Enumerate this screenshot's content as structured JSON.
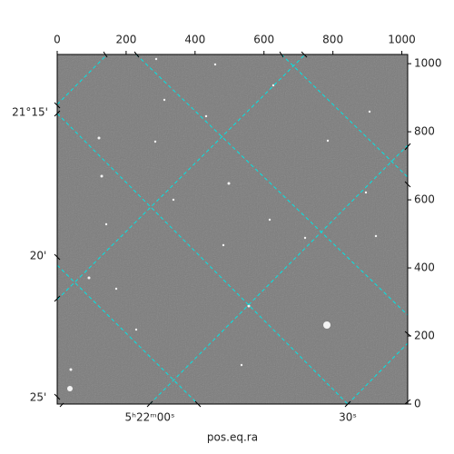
{
  "chart_data": {
    "type": "image",
    "xlabel": "pos.eq.ra",
    "xlim": [
      0,
      1017
    ],
    "ylim": [
      0,
      1027
    ],
    "xticks": [
      0,
      200,
      400,
      600,
      800,
      1000
    ],
    "yticks": [
      0,
      200,
      400,
      600,
      800,
      1000
    ],
    "dec_labels": [
      "21°15'",
      "20'",
      "25'"
    ],
    "ra_labels": [
      "5ʰ22ᵐ00ˢ",
      "30ˢ"
    ],
    "grid": true,
    "grid_color": "#00e5e5"
  }
}
